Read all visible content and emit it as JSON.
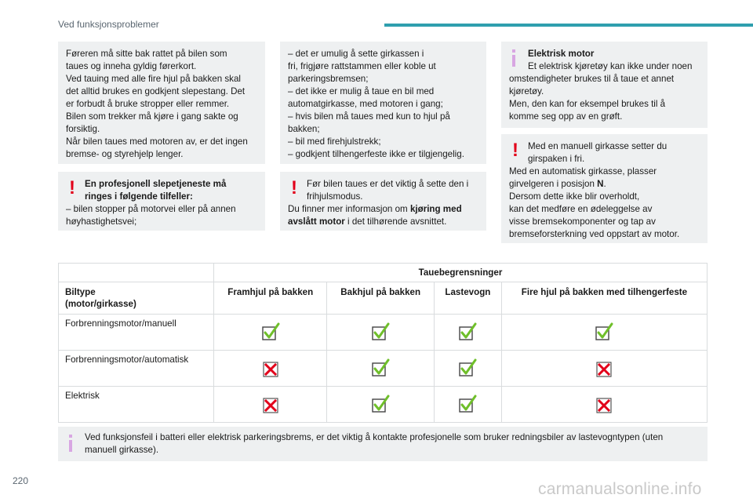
{
  "header": {
    "title": "Ved funksjonsproblemer",
    "accent_color": "#2f9fae"
  },
  "col1": {
    "paragraph": [
      "Føreren må sitte bak rattet på bilen som",
      "taues og inneha gyldig førerkort.",
      "Ved tauing med alle fire hjul på bakken skal",
      "det alltid brukes en godkjent slepestang. Det",
      "er forbudt å bruke stropper eller remmer.",
      "Bilen som trekker må kjøre i gang sakte og",
      "forsiktig.",
      "Når bilen taues med motoren av, er det ingen",
      "bremse- og styrehjelp lenger."
    ],
    "warning": {
      "icon": "exclamation-icon",
      "head": [
        "En profesjonell slepetjeneste må",
        "ringes i følgende tilfeller:"
      ],
      "lines": [
        "– bilen stopper på motorvei eller på annen",
        "høyhastighetsvei;"
      ]
    }
  },
  "col2": {
    "list": [
      "– det er umulig å sette girkassen i",
      "fri, frigjøre rattstammen eller koble ut",
      "parkeringsbremsen;",
      "– det ikke er mulig å taue en bil med",
      "automatgirkasse, med motoren i gang;",
      "– hvis bilen må taues med kun to hjul på",
      "bakken;",
      "– bil med firehjulstrekk;",
      "– godkjent tilhengerfeste ikke er tilgjengelig."
    ],
    "warning": {
      "icon": "exclamation-icon",
      "head": [
        "Før bilen taues er det viktig å sette den i",
        "frihjulsmodus."
      ],
      "line1_pre": "Du finner mer informasjon om ",
      "line1_bold": "kjøring med",
      "line2_bold": "avslått motor",
      "line2_post": " i det tilhørende avsnittet."
    }
  },
  "col3": {
    "info": {
      "icon": "info-icon",
      "title": "Elektrisk motor",
      "head2": "Et elektrisk kjøretøy kan ikke under noen",
      "lines": [
        "omstendigheter brukes til å taue et annet",
        "kjøretøy.",
        "Men, den kan for eksempel brukes til å",
        "komme seg opp av en grøft."
      ]
    },
    "warning": {
      "icon": "exclamation-icon",
      "head": [
        "Med en manuell girkasse setter du",
        "girspaken i fri."
      ],
      "line1": "Med en automatisk girkasse, plasser",
      "line2_pre": "girvelgeren i posisjon ",
      "line2_bold": "N",
      "line2_post": ".",
      "lines": [
        "Dersom dette ikke blir overholdt,",
        "kan det medføre en ødeleggelse av",
        "visse bremsekomponenter og tap av",
        "bremseforsterkning ved oppstart av motor."
      ]
    }
  },
  "table": {
    "group_header": "Tauebegrensninger",
    "col_header_first": [
      "Biltype",
      "(motor/girkasse)"
    ],
    "columns": [
      "Framhjul på bakken",
      "Bakhjul på bakken",
      "Lastevogn",
      "Fire hjul på bakken med tilhengerfeste"
    ],
    "rows": [
      {
        "label": "Forbrenningsmotor/manuell",
        "cells": [
          "yes",
          "yes",
          "yes",
          "yes"
        ]
      },
      {
        "label": "Forbrenningsmotor/automatisk",
        "cells": [
          "no",
          "yes",
          "yes",
          "no"
        ]
      },
      {
        "label": "Elektrisk",
        "cells": [
          "no",
          "yes",
          "yes",
          "no"
        ]
      }
    ],
    "yes_color": "#6fbf2a",
    "no_color": "#e2001a"
  },
  "bottom_info": {
    "icon": "info-icon",
    "lines": [
      "Ved funksjonsfeil i batteri eller elektrisk parkeringsbrems, er det viktig å kontakte profesjonelle som bruker redningsbiler av lastevogntypen (uten",
      "manuell girkasse)."
    ]
  },
  "page_number": "220",
  "watermark": "carmanualsonline.info"
}
